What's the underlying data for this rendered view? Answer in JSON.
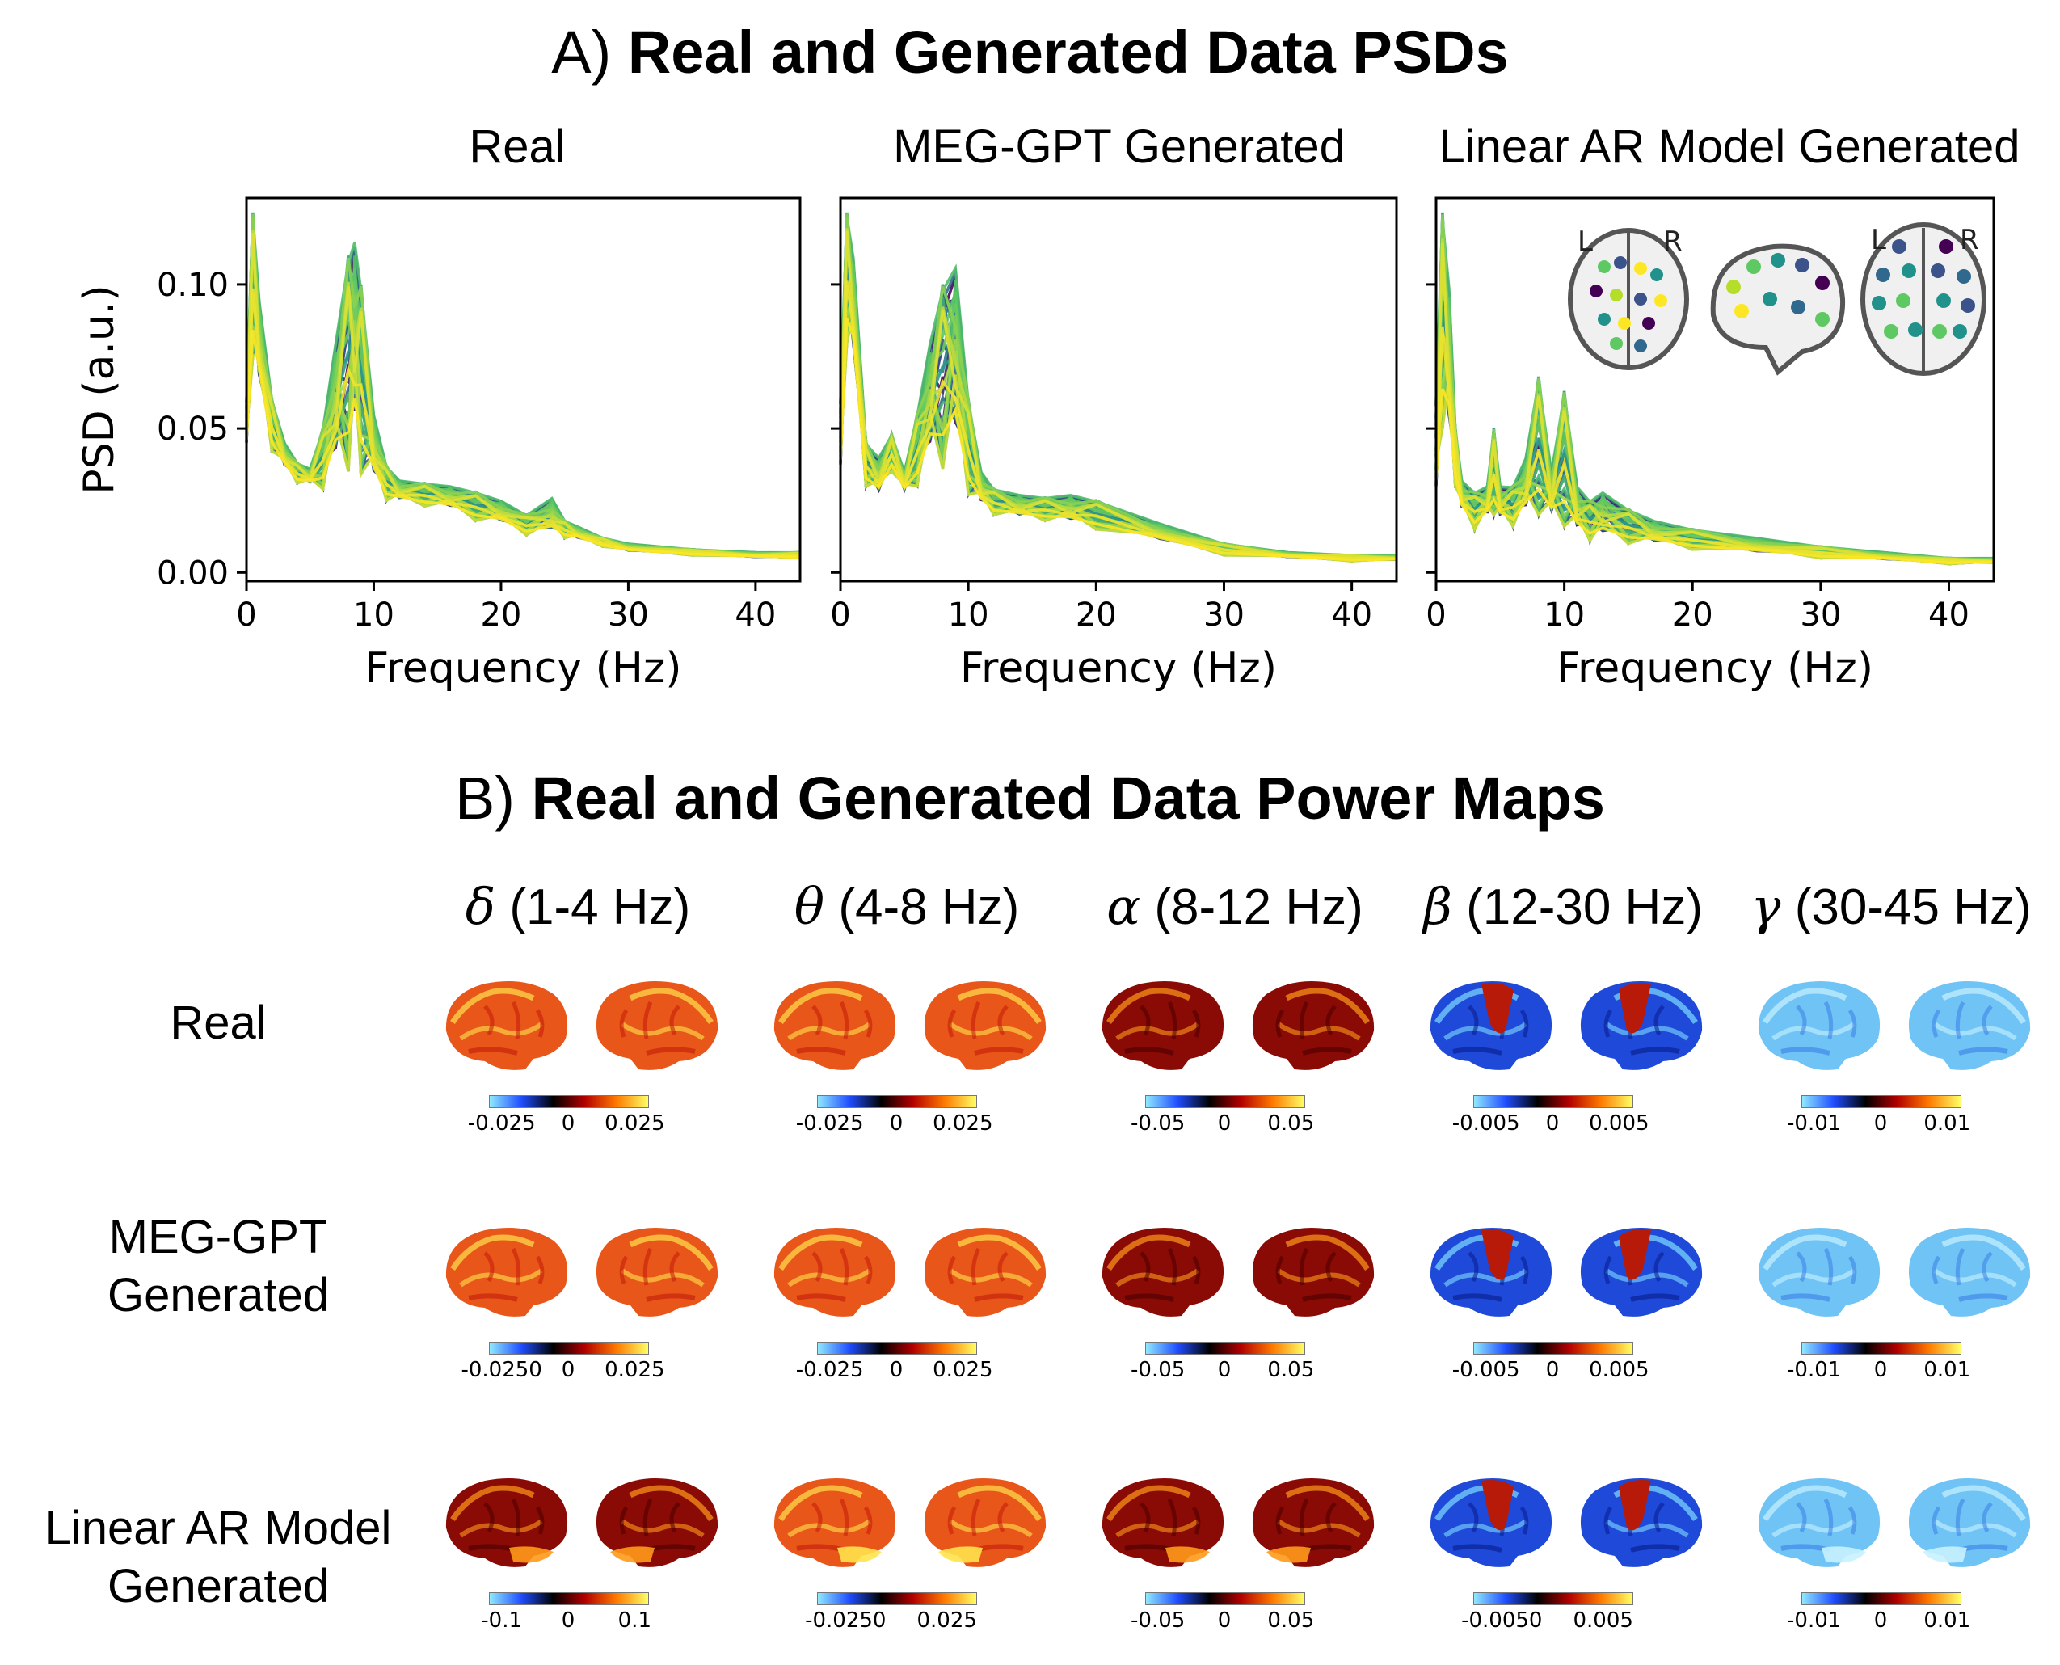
{
  "section_a": {
    "prefix": "A)",
    "title": "Real and Generated Data PSDs"
  },
  "section_b": {
    "prefix": "B)",
    "title": "Real and Generated Data Power Maps"
  },
  "chart_data": [
    {
      "type": "line",
      "title": "Real",
      "xlabel": "Frequency (Hz)",
      "ylabel": "PSD (a.u.)",
      "xlim": [
        0,
        43.5
      ],
      "ylim": [
        -0.003,
        0.13
      ],
      "xticks": [
        0,
        10,
        20,
        30,
        40
      ],
      "yticks": [
        0.0,
        0.05,
        0.1
      ],
      "ytick_labels": [
        "0.00",
        "0.05",
        "0.10"
      ],
      "colormap": "viridis",
      "series_count": 40,
      "x": [
        0,
        0.5,
        1,
        2,
        3,
        4,
        5,
        6,
        7,
        8,
        8.5,
        9,
        10,
        11,
        12,
        14,
        16,
        18,
        20,
        22,
        24,
        25,
        26,
        28,
        30,
        35,
        40,
        43.5
      ],
      "series_min": [
        0.04,
        0.075,
        0.06,
        0.042,
        0.035,
        0.031,
        0.03,
        0.029,
        0.031,
        0.035,
        0.036,
        0.034,
        0.029,
        0.025,
        0.024,
        0.023,
        0.021,
        0.018,
        0.016,
        0.013,
        0.012,
        0.012,
        0.011,
        0.009,
        0.007,
        0.006,
        0.005,
        0.005
      ],
      "series_max": [
        0.06,
        0.125,
        0.095,
        0.06,
        0.045,
        0.038,
        0.036,
        0.05,
        0.08,
        0.11,
        0.116,
        0.1,
        0.055,
        0.037,
        0.032,
        0.031,
        0.03,
        0.028,
        0.025,
        0.02,
        0.026,
        0.018,
        0.016,
        0.012,
        0.01,
        0.008,
        0.007,
        0.007
      ]
    },
    {
      "type": "line",
      "title": "MEG-GPT Generated",
      "xlabel": "Frequency (Hz)",
      "ylabel": "",
      "xlim": [
        0,
        43.5
      ],
      "ylim": [
        -0.003,
        0.13
      ],
      "xticks": [
        0,
        10,
        20,
        30,
        40
      ],
      "colormap": "viridis",
      "series_count": 40,
      "x": [
        0,
        0.5,
        1,
        2,
        3,
        4,
        5,
        6,
        7,
        8,
        9,
        10,
        11,
        12,
        14,
        16,
        18,
        20,
        25,
        30,
        35,
        40,
        43.5
      ],
      "series_min": [
        0.03,
        0.08,
        0.07,
        0.03,
        0.025,
        0.035,
        0.027,
        0.03,
        0.034,
        0.036,
        0.034,
        0.027,
        0.022,
        0.02,
        0.018,
        0.018,
        0.016,
        0.015,
        0.01,
        0.006,
        0.005,
        0.004,
        0.004
      ],
      "series_max": [
        0.06,
        0.125,
        0.11,
        0.045,
        0.04,
        0.048,
        0.035,
        0.055,
        0.08,
        0.1,
        0.107,
        0.06,
        0.035,
        0.029,
        0.027,
        0.026,
        0.027,
        0.025,
        0.017,
        0.01,
        0.007,
        0.006,
        0.006
      ]
    },
    {
      "type": "line",
      "title": "Linear AR Model Generated",
      "xlabel": "Frequency (Hz)",
      "ylabel": "",
      "xlim": [
        0,
        43.5
      ],
      "ylim": [
        -0.003,
        0.13
      ],
      "xticks": [
        0,
        10,
        20,
        30,
        40
      ],
      "colormap": "viridis",
      "series_count": 40,
      "x": [
        0,
        0.5,
        1,
        1.5,
        2,
        3,
        4,
        4.5,
        5,
        6,
        7,
        8,
        9,
        10,
        11,
        12,
        13,
        15,
        17,
        20,
        25,
        30,
        35,
        40,
        43.5
      ],
      "series_min": [
        0.02,
        0.05,
        0.04,
        0.03,
        0.02,
        0.015,
        0.018,
        0.02,
        0.017,
        0.016,
        0.018,
        0.02,
        0.017,
        0.016,
        0.012,
        0.011,
        0.01,
        0.01,
        0.009,
        0.008,
        0.006,
        0.005,
        0.004,
        0.003,
        0.003
      ],
      "series_max": [
        0.06,
        0.125,
        0.1,
        0.05,
        0.032,
        0.028,
        0.03,
        0.05,
        0.03,
        0.03,
        0.04,
        0.068,
        0.035,
        0.063,
        0.03,
        0.025,
        0.028,
        0.022,
        0.018,
        0.015,
        0.012,
        0.009,
        0.007,
        0.005,
        0.005
      ]
    }
  ],
  "inset": {
    "left_label": "L",
    "right_label": "R"
  },
  "bands": [
    {
      "symbol": "δ",
      "range": "(1-4 Hz)"
    },
    {
      "symbol": "θ",
      "range": "(4-8 Hz)"
    },
    {
      "symbol": "α",
      "range": "(8-12 Hz)"
    },
    {
      "symbol": "β",
      "range": "(12-30 Hz)"
    },
    {
      "symbol": "γ",
      "range": "(30-45 Hz)"
    }
  ],
  "rows": [
    {
      "label_line1": "Real",
      "label_line2": ""
    },
    {
      "label_line1": "MEG-GPT",
      "label_line2": "Generated"
    },
    {
      "label_line1": "Linear AR Model",
      "label_line2": "Generated"
    }
  ],
  "power_maps": [
    [
      {
        "scheme": "warm_bright",
        "ticks": [
          "-0.025",
          "0",
          "0.025"
        ]
      },
      {
        "scheme": "warm_bright",
        "ticks": [
          "-0.025",
          "0",
          "0.025"
        ]
      },
      {
        "scheme": "warm_dark",
        "ticks": [
          "-0.05",
          "0",
          "0.05"
        ]
      },
      {
        "scheme": "cool_beta",
        "ticks": [
          "-0.005",
          "0",
          "0.005"
        ]
      },
      {
        "scheme": "cool_light",
        "ticks": [
          "-0.01",
          "0",
          "0.01"
        ]
      }
    ],
    [
      {
        "scheme": "warm_bright",
        "ticks": [
          "-0.0250",
          "0",
          "0.025"
        ]
      },
      {
        "scheme": "warm_bright",
        "ticks": [
          "-0.025",
          "0",
          "0.025"
        ]
      },
      {
        "scheme": "warm_dark",
        "ticks": [
          "-0.05",
          "0",
          "0.05"
        ]
      },
      {
        "scheme": "cool_beta",
        "ticks": [
          "-0.005",
          "0",
          "0.005"
        ]
      },
      {
        "scheme": "cool_light",
        "ticks": [
          "-0.01",
          "0",
          "0.01"
        ]
      }
    ],
    [
      {
        "scheme": "warm_dark",
        "ticks": [
          "-0.1",
          "0",
          "0.1"
        ]
      },
      {
        "scheme": "warm_bright",
        "ticks": [
          "-0.0250",
          "0.025"
        ]
      },
      {
        "scheme": "warm_dark",
        "ticks": [
          "-0.05",
          "0",
          "0.05"
        ]
      },
      {
        "scheme": "cool_beta",
        "ticks": [
          "-0.0050",
          "0.005"
        ]
      },
      {
        "scheme": "cool_light",
        "ticks": [
          "-0.01",
          "0",
          "0.01"
        ]
      }
    ]
  ],
  "colors": {
    "viridis": [
      "#440154",
      "#3b528b",
      "#21918c",
      "#5ec962",
      "#fde725"
    ],
    "colorbar": [
      "#8fe8ff",
      "#1f4dff",
      "#000000",
      "#b30000",
      "#ff7a00",
      "#ffff66"
    ]
  }
}
